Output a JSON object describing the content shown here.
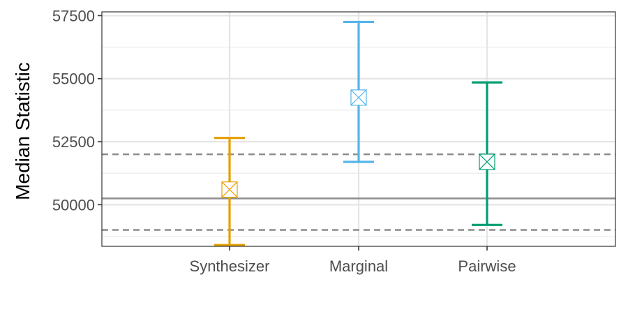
{
  "chart_data": {
    "type": "errorbar",
    "title": "",
    "xlabel": "",
    "ylabel": "Median Statistic",
    "ylim": [
      48350,
      57650
    ],
    "yticks": [
      50000,
      52500,
      55000,
      57500
    ],
    "grid": true,
    "categories": [
      "Synthesizer",
      "Marginal",
      "Pairwise"
    ],
    "points": [
      {
        "category": "Synthesizer",
        "estimate": 50600,
        "lower": 48400,
        "upper": 52650,
        "color": "#E69F00"
      },
      {
        "category": "Marginal",
        "estimate": 54250,
        "lower": 51700,
        "upper": 57250,
        "color": "#56B4E9"
      },
      {
        "category": "Pairwise",
        "estimate": 51700,
        "lower": 49200,
        "upper": 54850,
        "color": "#009E73"
      }
    ],
    "reference_lines": [
      {
        "value": 50250,
        "style": "solid",
        "color": "#8c8c8c"
      },
      {
        "value": 52000,
        "style": "dashed",
        "color": "#8c8c8c"
      },
      {
        "value": 49000,
        "style": "dashed",
        "color": "#8c8c8c"
      }
    ]
  }
}
